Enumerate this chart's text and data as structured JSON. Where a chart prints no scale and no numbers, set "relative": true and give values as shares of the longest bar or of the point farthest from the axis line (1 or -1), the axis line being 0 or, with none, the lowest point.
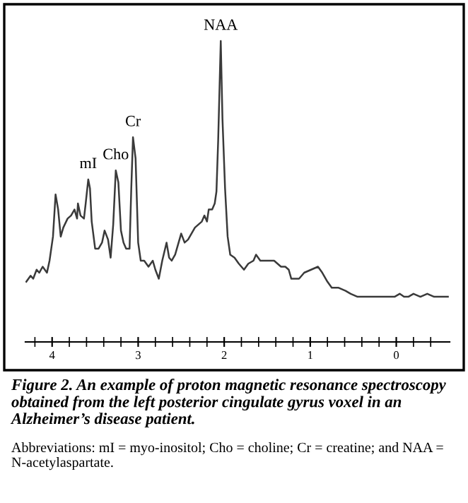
{
  "chart_data": {
    "type": "line",
    "relative": true,
    "title": "Figure 2. An example of proton magnetic resonance spectroscopy obtained from the left posterior cingulate gyrus voxel in an Alzheimer’s disease patient.",
    "annotations": [
      {
        "text": "mI",
        "x": 3.58,
        "y": 0.54
      },
      {
        "text": "Cho",
        "x": 3.26,
        "y": 0.57
      },
      {
        "text": "Cr",
        "x": 3.06,
        "y": 0.68
      },
      {
        "text": "NAA",
        "x": 2.04,
        "y": 1
      },
      "Abbreviations: mI = myo-inositol; Cho = choline; Cr = creatine; and NAA = N-acetylaspartate."
    ],
    "xlim": [
      4.31,
      -0.62
    ],
    "xticks": [
      {
        "value": 4.2,
        "label": null
      },
      4,
      {
        "value": 3.8,
        "label": null
      },
      {
        "value": 3.6,
        "label": null
      },
      {
        "value": 3.4,
        "label": null
      },
      {
        "value": 3.2,
        "label": null
      },
      3,
      {
        "value": 2.8,
        "label": null
      },
      {
        "value": 2.6,
        "label": null
      },
      {
        "value": 2.4,
        "label": null
      },
      {
        "value": 2.2,
        "label": null
      },
      2,
      {
        "value": 1.8,
        "label": null
      },
      {
        "value": 1.6,
        "label": null
      },
      {
        "value": 1.4,
        "label": null
      },
      {
        "value": 1.2,
        "label": null
      },
      1,
      {
        "value": 0.8,
        "label": null
      },
      {
        "value": 0.6,
        "label": null
      },
      {
        "value": 0.4,
        "label": null
      },
      {
        "value": 0.2,
        "label": null
      },
      0,
      {
        "value": -0.2,
        "label": null
      },
      {
        "value": -0.4,
        "label": null
      }
    ],
    "marker": "none",
    "line_style": "solid",
    "series": [
      {
        "color": "#3a3a3a",
        "x": [
          4.3,
          4.25,
          4.22,
          4.18,
          4.15,
          4.11,
          4.06,
          4.03,
          3.99,
          3.96,
          3.93,
          3.9,
          3.87,
          3.82,
          3.78,
          3.74,
          3.71,
          3.7,
          3.67,
          3.63,
          3.61,
          3.58,
          3.56,
          3.54,
          3.5,
          3.46,
          3.42,
          3.39,
          3.35,
          3.32,
          3.29,
          3.26,
          3.23,
          3.2,
          3.17,
          3.14,
          3.1,
          3.08,
          3.06,
          3.03,
          3.0,
          2.97,
          2.93,
          2.88,
          2.83,
          2.8,
          2.76,
          2.72,
          2.67,
          2.64,
          2.61,
          2.57,
          2.53,
          2.5,
          2.46,
          2.42,
          2.38,
          2.34,
          2.3,
          2.26,
          2.23,
          2.2,
          2.18,
          2.14,
          2.11,
          2.09,
          2.07,
          2.04,
          2.02,
          1.99,
          1.96,
          1.93,
          1.88,
          1.83,
          1.77,
          1.72,
          1.66,
          1.63,
          1.58,
          1.53,
          1.48,
          1.42,
          1.34,
          1.29,
          1.25,
          1.22,
          1.18,
          1.13,
          1.07,
          0.99,
          0.91,
          0.86,
          0.8,
          0.75,
          0.67,
          0.59,
          0.53,
          0.45,
          0.34,
          0.24,
          0.13,
          0.06,
          0.02,
          -0.04,
          -0.09,
          -0.14,
          -0.2,
          -0.28,
          -0.36,
          -0.44,
          -0.52,
          -0.6
        ],
        "values": [
          0.2,
          0.22,
          0.21,
          0.24,
          0.23,
          0.25,
          0.23,
          0.27,
          0.35,
          0.49,
          0.44,
          0.35,
          0.38,
          0.41,
          0.42,
          0.44,
          0.41,
          0.46,
          0.42,
          0.41,
          0.46,
          0.54,
          0.51,
          0.4,
          0.31,
          0.31,
          0.33,
          0.37,
          0.34,
          0.28,
          0.39,
          0.57,
          0.53,
          0.37,
          0.33,
          0.31,
          0.31,
          0.51,
          0.68,
          0.61,
          0.33,
          0.27,
          0.27,
          0.25,
          0.27,
          0.24,
          0.21,
          0.27,
          0.33,
          0.28,
          0.27,
          0.29,
          0.33,
          0.36,
          0.33,
          0.34,
          0.36,
          0.38,
          0.39,
          0.4,
          0.42,
          0.4,
          0.44,
          0.44,
          0.46,
          0.5,
          0.67,
          1,
          0.74,
          0.51,
          0.35,
          0.29,
          0.28,
          0.26,
          0.24,
          0.26,
          0.27,
          0.29,
          0.27,
          0.27,
          0.27,
          0.27,
          0.25,
          0.25,
          0.24,
          0.21,
          0.21,
          0.21,
          0.23,
          0.24,
          0.25,
          0.23,
          0.2,
          0.18,
          0.18,
          0.17,
          0.16,
          0.15,
          0.15,
          0.15,
          0.15,
          0.15,
          0.15,
          0.16,
          0.15,
          0.15,
          0.16,
          0.15,
          0.16,
          0.15,
          0.15,
          0.15
        ]
      }
    ]
  }
}
